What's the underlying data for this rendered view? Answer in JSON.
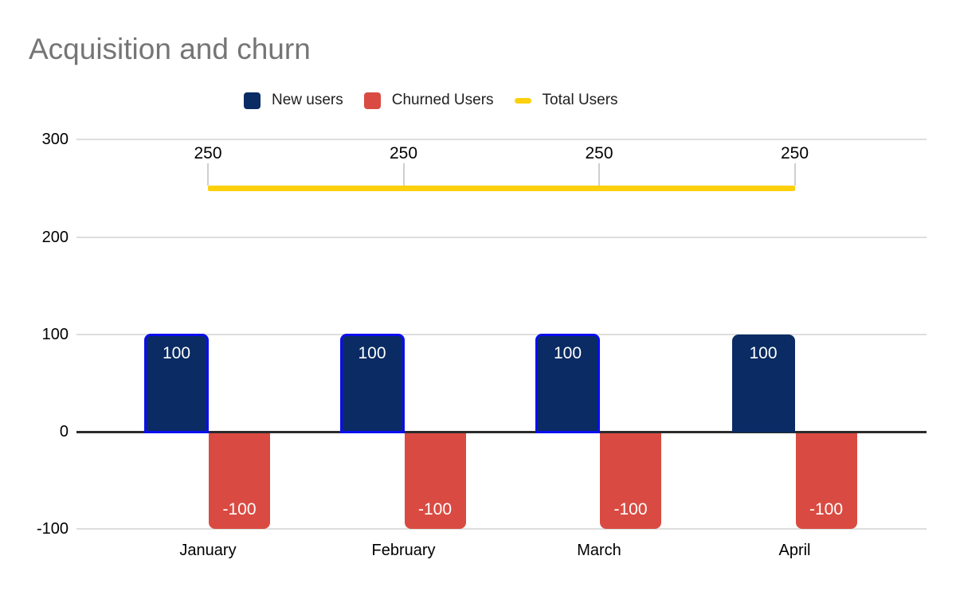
{
  "chart": {
    "title": "Acquisition and churn",
    "colors": {
      "background": "#ffffff",
      "title_text": "#757575",
      "axis_text": "#000000",
      "legend_text": "#1f1f1f",
      "grid_line": "#dedede",
      "zero_line": "#2b2b2b",
      "leader_line": "#cfcfcf",
      "new_users": "#0a2b63",
      "new_users_outline": "#0b0df0",
      "churned_users": "#d94b42",
      "total_users": "#fcd00c",
      "bar_label_text": "#ffffff",
      "line_label_text": "#000000"
    },
    "legend": {
      "position": "top",
      "items": [
        {
          "id": "new-users",
          "label": "New users",
          "swatch": "square",
          "color_key": "new_users"
        },
        {
          "id": "churned-users",
          "label": "Churned Users",
          "swatch": "square",
          "color_key": "churned_users"
        },
        {
          "id": "total-users",
          "label": "Total Users",
          "swatch": "dash",
          "color_key": "total_users"
        }
      ]
    }
  },
  "chart_data": {
    "type": "bar",
    "subtype": "combo-column-line",
    "title": "Acquisition and churn",
    "categories": [
      "January",
      "February",
      "March",
      "April"
    ],
    "series": [
      {
        "name": "New users",
        "type": "column",
        "color_key": "new_users",
        "values": [
          100,
          100,
          100,
          100
        ],
        "data_labels": [
          "100",
          "100",
          "100",
          "100"
        ],
        "outlined_points": [
          true,
          true,
          true,
          false
        ]
      },
      {
        "name": "Churned Users",
        "type": "column",
        "color_key": "churned_users",
        "values": [
          -100,
          -100,
          -100,
          -100
        ],
        "data_labels": [
          "-100",
          "-100",
          "-100",
          "-100"
        ]
      },
      {
        "name": "Total Users",
        "type": "line",
        "color_key": "total_users",
        "values": [
          250,
          250,
          250,
          250
        ],
        "data_labels": [
          "250",
          "250",
          "250",
          "250"
        ]
      }
    ],
    "y_axis": {
      "min": -100,
      "max": 300,
      "tick_step": 100,
      "ticks": [
        300,
        200,
        100,
        0,
        -100
      ]
    },
    "x_axis": {
      "labels": [
        "January",
        "February",
        "March",
        "April"
      ]
    },
    "grid": true,
    "legend_position": "top"
  }
}
